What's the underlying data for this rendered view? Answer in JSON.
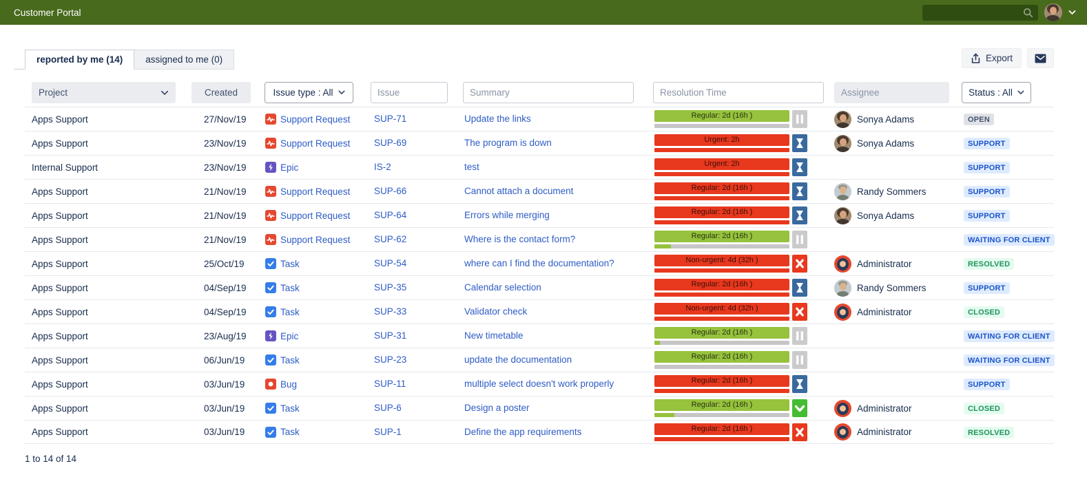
{
  "header": {
    "title": "Customer Portal"
  },
  "tabs": [
    {
      "label": "reported by me (14)",
      "active": true
    },
    {
      "label": "assigned to me (0)",
      "active": false
    }
  ],
  "toolbar": {
    "export_label": "Export"
  },
  "filters": {
    "project_label": "Project",
    "created_label": "Created",
    "issue_type_label": "Issue type : All",
    "issue_placeholder": "Issue",
    "summary_placeholder": "Summary",
    "resolution_placeholder": "Resolution Time",
    "assignee_placeholder": "Assignee",
    "status_label": "Status : All"
  },
  "colors": {
    "topbar_green": "#486A1C",
    "search_green": "#2F4D11",
    "bar_green": "#96C23D",
    "bar_red": "#E8381E",
    "icon_blue_hourglass": "#3A699E",
    "icon_green_check": "#45BC33",
    "link_blue": "#2E5CC5",
    "badge_blue_bg": "#DEEBFF",
    "badge_green_bg": "#E3FCEF",
    "badge_gray_bg": "#DFE1E6"
  },
  "table": {
    "rows": [
      {
        "project": "Apps Support",
        "created": "27/Nov/19",
        "type": {
          "label": "Support Request",
          "icon": "support-request"
        },
        "key": "SUP-71",
        "summary": "Update the links",
        "resolution": {
          "label": "Regular: 2d (16h )",
          "bar": "green",
          "progress_pct": 0,
          "icon": "pause"
        },
        "assignee": {
          "name": "Sonya Adams",
          "avatar": "sonya"
        },
        "status": {
          "label": "OPEN",
          "variant": "gray"
        }
      },
      {
        "project": "Apps Support",
        "created": "23/Nov/19",
        "type": {
          "label": "Support Request",
          "icon": "support-request"
        },
        "key": "SUP-69",
        "summary": "The program is down",
        "resolution": {
          "label": "Urgent: 2h",
          "bar": "red",
          "progress_pct": 100,
          "icon": "hourglass"
        },
        "assignee": {
          "name": "Sonya Adams",
          "avatar": "sonya"
        },
        "status": {
          "label": "SUPPORT",
          "variant": "blue"
        }
      },
      {
        "project": "Internal Support",
        "created": "23/Nov/19",
        "type": {
          "label": "Epic",
          "icon": "epic"
        },
        "key": "IS-2",
        "summary": "test",
        "resolution": {
          "label": "Urgent: 2h",
          "bar": "red",
          "progress_pct": 100,
          "icon": "hourglass"
        },
        "assignee": null,
        "status": {
          "label": "SUPPORT",
          "variant": "blue"
        }
      },
      {
        "project": "Apps Support",
        "created": "21/Nov/19",
        "type": {
          "label": "Support Request",
          "icon": "support-request"
        },
        "key": "SUP-66",
        "summary": "Cannot attach a document",
        "resolution": {
          "label": "Regular: 2d (16h )",
          "bar": "red",
          "progress_pct": 100,
          "icon": "hourglass"
        },
        "assignee": {
          "name": "Randy Sommers",
          "avatar": "randy"
        },
        "status": {
          "label": "SUPPORT",
          "variant": "blue"
        }
      },
      {
        "project": "Apps Support",
        "created": "21/Nov/19",
        "type": {
          "label": "Support Request",
          "icon": "support-request"
        },
        "key": "SUP-64",
        "summary": "Errors while merging",
        "resolution": {
          "label": "Regular: 2d (16h )",
          "bar": "red",
          "progress_pct": 100,
          "icon": "hourglass"
        },
        "assignee": {
          "name": "Sonya Adams",
          "avatar": "sonya"
        },
        "status": {
          "label": "SUPPORT",
          "variant": "blue"
        }
      },
      {
        "project": "Apps Support",
        "created": "21/Nov/19",
        "type": {
          "label": "Support Request",
          "icon": "support-request"
        },
        "key": "SUP-62",
        "summary": "Where is the contact form?",
        "resolution": {
          "label": "Regular: 2d (16h )",
          "bar": "green",
          "progress_pct": 12,
          "icon": "pause"
        },
        "assignee": null,
        "status": {
          "label": "WAITING FOR CLIENT",
          "variant": "blue"
        }
      },
      {
        "project": "Apps Support",
        "created": "25/Oct/19",
        "type": {
          "label": "Task",
          "icon": "task"
        },
        "key": "SUP-54",
        "summary": "where can I find the documentation?",
        "resolution": {
          "label": "Non-urgent: 4d (32h )",
          "bar": "red",
          "progress_pct": 100,
          "icon": "x"
        },
        "assignee": {
          "name": "Administrator",
          "avatar": "admin"
        },
        "status": {
          "label": "RESOLVED",
          "variant": "green"
        }
      },
      {
        "project": "Apps Support",
        "created": "04/Sep/19",
        "type": {
          "label": "Task",
          "icon": "task"
        },
        "key": "SUP-35",
        "summary": "Calendar selection",
        "resolution": {
          "label": "Regular: 2d (16h )",
          "bar": "red",
          "progress_pct": 100,
          "icon": "hourglass"
        },
        "assignee": {
          "name": "Randy Sommers",
          "avatar": "randy"
        },
        "status": {
          "label": "SUPPORT",
          "variant": "blue"
        }
      },
      {
        "project": "Apps Support",
        "created": "04/Sep/19",
        "type": {
          "label": "Task",
          "icon": "task"
        },
        "key": "SUP-33",
        "summary": "Validator check",
        "resolution": {
          "label": "Non-urgent: 4d (32h )",
          "bar": "red",
          "progress_pct": 100,
          "icon": "x"
        },
        "assignee": {
          "name": "Administrator",
          "avatar": "admin"
        },
        "status": {
          "label": "CLOSED",
          "variant": "green"
        }
      },
      {
        "project": "Apps Support",
        "created": "23/Aug/19",
        "type": {
          "label": "Epic",
          "icon": "epic"
        },
        "key": "SUP-31",
        "summary": "New timetable",
        "resolution": {
          "label": "Regular: 2d (16h )",
          "bar": "green",
          "progress_pct": 4,
          "icon": "pause"
        },
        "assignee": null,
        "status": {
          "label": "WAITING FOR CLIENT",
          "variant": "blue"
        }
      },
      {
        "project": "Apps Support",
        "created": "06/Jun/19",
        "type": {
          "label": "Task",
          "icon": "task"
        },
        "key": "SUP-23",
        "summary": "update the documentation",
        "resolution": {
          "label": "Regular: 2d (16h )",
          "bar": "green",
          "progress_pct": 0,
          "icon": "pause"
        },
        "assignee": null,
        "status": {
          "label": "WAITING FOR CLIENT",
          "variant": "blue"
        }
      },
      {
        "project": "Apps Support",
        "created": "03/Jun/19",
        "type": {
          "label": "Bug",
          "icon": "bug"
        },
        "key": "SUP-11",
        "summary": "multiple select doesn't work properly",
        "resolution": {
          "label": "Regular: 2d (16h )",
          "bar": "red",
          "progress_pct": 100,
          "icon": "hourglass"
        },
        "assignee": null,
        "status": {
          "label": "SUPPORT",
          "variant": "blue"
        }
      },
      {
        "project": "Apps Support",
        "created": "03/Jun/19",
        "type": {
          "label": "Task",
          "icon": "task"
        },
        "key": "SUP-6",
        "summary": "Design a poster",
        "resolution": {
          "label": "Regular: 2d (16h )",
          "bar": "green",
          "progress_pct": 15,
          "icon": "check"
        },
        "assignee": {
          "name": "Administrator",
          "avatar": "admin"
        },
        "status": {
          "label": "CLOSED",
          "variant": "green"
        }
      },
      {
        "project": "Apps Support",
        "created": "03/Jun/19",
        "type": {
          "label": "Task",
          "icon": "task"
        },
        "key": "SUP-1",
        "summary": "Define the app requirements",
        "resolution": {
          "label": "Regular: 2d (16h )",
          "bar": "red",
          "progress_pct": 100,
          "icon": "x"
        },
        "assignee": {
          "name": "Administrator",
          "avatar": "admin"
        },
        "status": {
          "label": "RESOLVED",
          "variant": "green"
        }
      }
    ]
  },
  "footer": {
    "range_text": "1 to 14 of 14"
  }
}
